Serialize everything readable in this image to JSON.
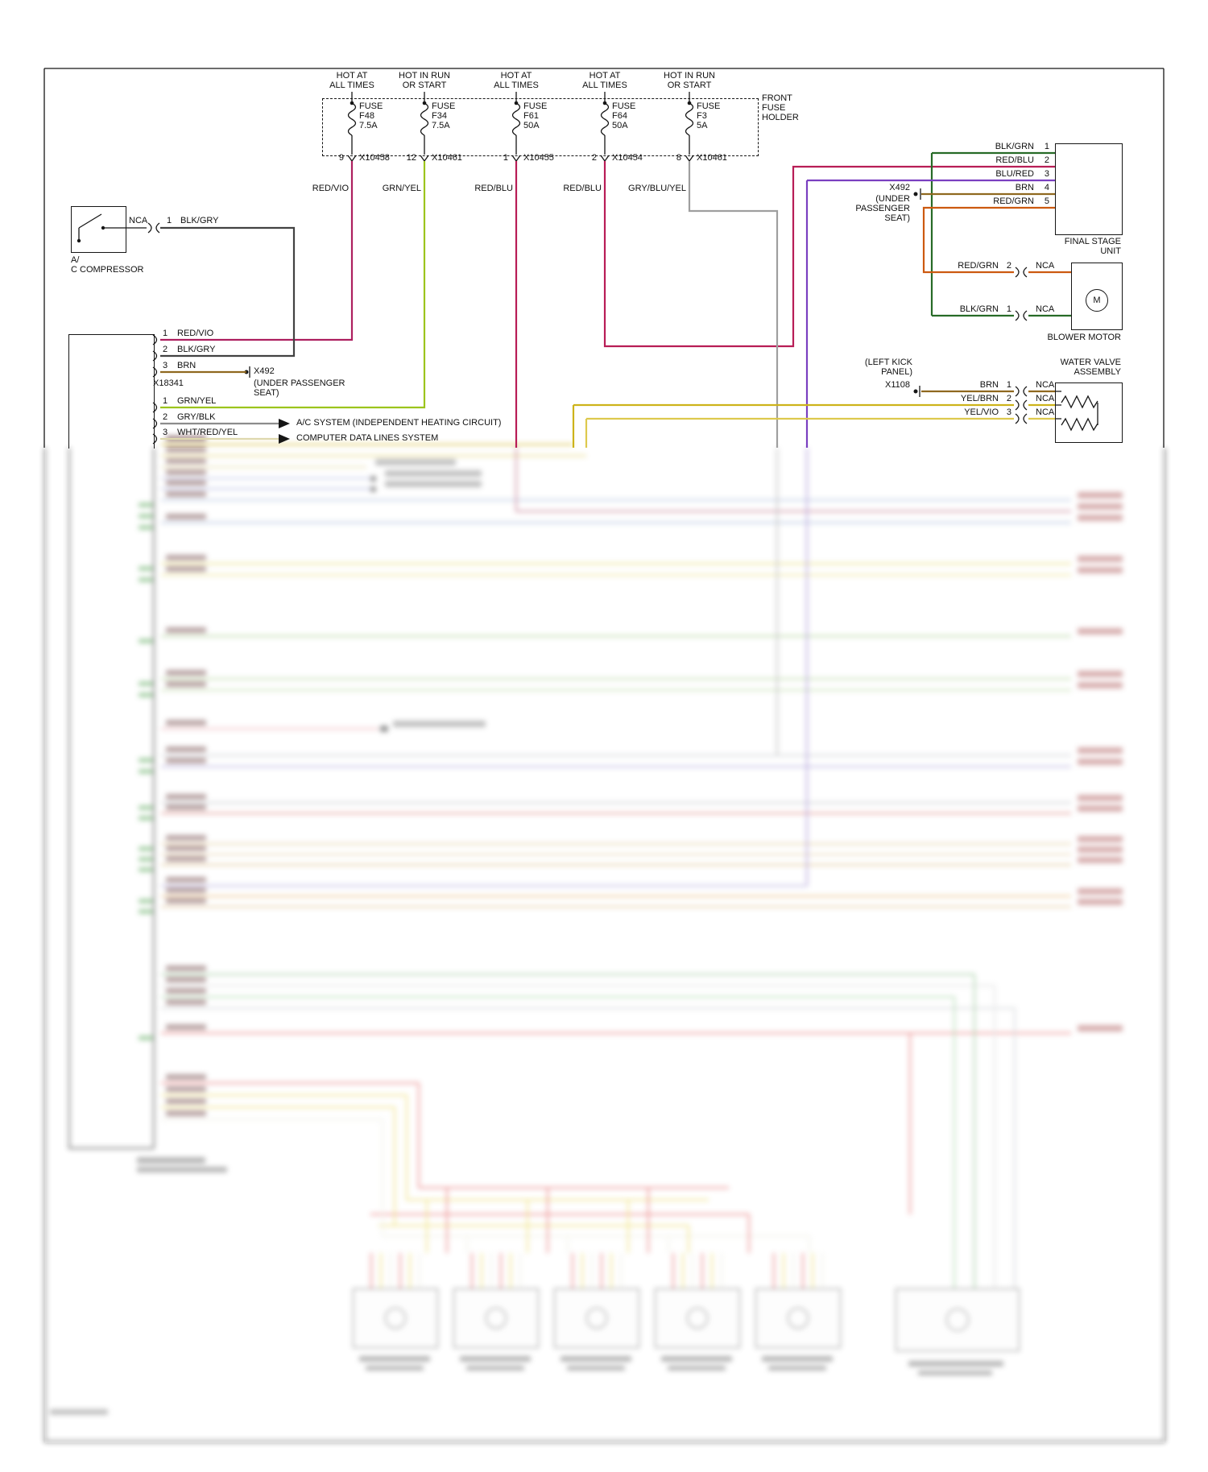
{
  "diagram": {
    "type": "automotive wiring diagram",
    "background": "#ffffff"
  },
  "fuse_holder": {
    "title": "FRONT\nFUSE\nHOLDER",
    "supply_labels": [
      "HOT AT\nALL TIMES",
      "HOT IN RUN\nOR START",
      "HOT AT\nALL TIMES",
      "HOT AT\nALL TIMES",
      "HOT IN RUN\nOR START"
    ],
    "fuses": [
      {
        "label": "FUSE\nF48\n7.5A",
        "pin": "9",
        "connector": "X10458",
        "wire": "RED/VIO"
      },
      {
        "label": "FUSE\nF34\n7.5A",
        "pin": "12",
        "connector": "X10461",
        "wire": "GRN/YEL"
      },
      {
        "label": "FUSE\nF61\n50A",
        "pin": "1",
        "connector": "X10455",
        "wire": "RED/BLU"
      },
      {
        "label": "FUSE\nF64\n50A",
        "pin": "2",
        "connector": "X10454",
        "wire": "RED/BLU"
      },
      {
        "label": "FUSE\nF3\n5A",
        "pin": "8",
        "connector": "X10461",
        "wire": "GRY/BLU/YEL"
      }
    ]
  },
  "final_stage_unit": {
    "label": "FINAL STAGE\nUNIT",
    "pins": [
      {
        "n": "1",
        "wire": "BLK/GRN"
      },
      {
        "n": "2",
        "wire": "RED/BLU"
      },
      {
        "n": "3",
        "wire": "BLU/RED"
      },
      {
        "n": "4",
        "wire": "BRN"
      },
      {
        "n": "5",
        "wire": "RED/GRN"
      }
    ]
  },
  "x492_right": {
    "label": "X492",
    "location": "(UNDER\nPASSENGER\nSEAT)"
  },
  "blower_motor": {
    "label": "BLOWER MOTOR",
    "symbol": "M",
    "pins": [
      {
        "wire": "RED/GRN",
        "n": "2",
        "nca": "NCA"
      },
      {
        "wire": "BLK/GRN",
        "n": "1",
        "nca": "NCA"
      }
    ]
  },
  "water_valve": {
    "label": "WATER VALVE\nASSEMBLY",
    "location": "(LEFT KICK\nPANEL)",
    "connector": "X1108",
    "pins": [
      {
        "wire": "BRN",
        "n": "1",
        "nca": "NCA"
      },
      {
        "wire": "YEL/BRN",
        "n": "2",
        "nca": "NCA"
      },
      {
        "wire": "YEL/VIO",
        "n": "3",
        "nca": "NCA"
      }
    ]
  },
  "ac_compressor": {
    "label": "A/\nC COMPRESSOR",
    "nca": "NCA",
    "pin": "1",
    "wire": "BLK/GRY"
  },
  "control_module": {
    "connector": "X18341",
    "x492": {
      "label": "X492",
      "location": "(UNDER PASSENGER\nSEAT)"
    },
    "pins_group1": [
      {
        "n": "1",
        "wire": "RED/VIO"
      },
      {
        "n": "2",
        "wire": "BLK/GRY"
      },
      {
        "n": "3",
        "wire": "BRN"
      }
    ],
    "pins_group2": [
      {
        "n": "1",
        "wire": "GRN/YEL"
      },
      {
        "n": "2",
        "wire": "GRY/BLK",
        "system": "A/C SYSTEM (INDEPENDENT HEATING CIRCUIT)"
      },
      {
        "n": "3",
        "wire": "WHT/RED/YEL",
        "system": "COMPUTER DATA LINES SYSTEM"
      }
    ]
  },
  "wire_colors": {
    "RED/VIO": "#ad1f5f",
    "GRN/YEL": "#9cc41c",
    "RED/BLU": "#b81d56",
    "GRY/BLU/YEL": "#9f9f9f",
    "BLK/GRY": "#424242",
    "BRN": "#8f681f",
    "BLK/GRN": "#276b27",
    "BLU/RED": "#7a3fc0",
    "RED/GRN": "#cc5a10",
    "YEL/BRN": "#cdb31a",
    "YEL/VIO": "#ddc94e",
    "GRY/BLK": "#8c8c8c",
    "WHT/RED/YEL": "#ded8ae"
  }
}
